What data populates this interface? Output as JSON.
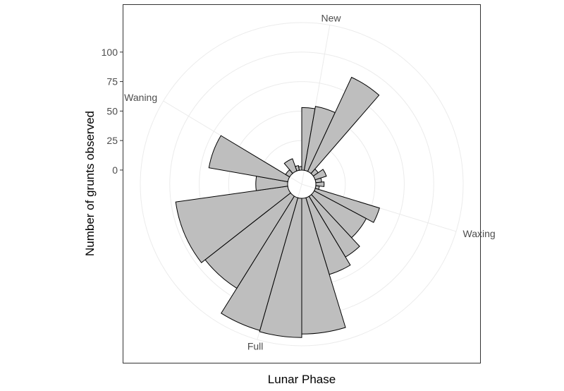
{
  "chart_data": {
    "type": "polar-bar",
    "xlabel": "Lunar Phase",
    "ylabel": "Number of grunts observed",
    "radial_ticks": [
      0,
      25,
      50,
      75,
      100
    ],
    "rlim": [
      -12,
      125
    ],
    "angular_labels": [
      {
        "text": "New",
        "angle_deg": 10
      },
      {
        "text": "Waxing",
        "angle_deg": 107
      },
      {
        "text": "Full",
        "angle_deg": 196
      },
      {
        "text": "Waning",
        "angle_deg": 301
      }
    ],
    "bins": [
      {
        "start_deg": 0,
        "end_deg": 10,
        "value": 53
      },
      {
        "start_deg": 10,
        "end_deg": 25,
        "value": 55
      },
      {
        "start_deg": 25,
        "end_deg": 41,
        "value": 88
      },
      {
        "start_deg": 41,
        "end_deg": 55,
        "value": 5
      },
      {
        "start_deg": 55,
        "end_deg": 72,
        "value": 10
      },
      {
        "start_deg": 72,
        "end_deg": 84,
        "value": 5
      },
      {
        "start_deg": 84,
        "end_deg": 96,
        "value": 7
      },
      {
        "start_deg": 96,
        "end_deg": 107,
        "value": 3
      },
      {
        "start_deg": 107,
        "end_deg": 118,
        "value": 57
      },
      {
        "start_deg": 118,
        "end_deg": 137,
        "value": 50
      },
      {
        "start_deg": 137,
        "end_deg": 149,
        "value": 60
      },
      {
        "start_deg": 149,
        "end_deg": 163,
        "value": 68
      },
      {
        "start_deg": 163,
        "end_deg": 180,
        "value": 115
      },
      {
        "start_deg": 180,
        "end_deg": 196,
        "value": 118
      },
      {
        "start_deg": 196,
        "end_deg": 212,
        "value": 117
      },
      {
        "start_deg": 212,
        "end_deg": 232,
        "value": 92
      },
      {
        "start_deg": 232,
        "end_deg": 262,
        "value": 96
      },
      {
        "start_deg": 262,
        "end_deg": 280,
        "value": 27
      },
      {
        "start_deg": 280,
        "end_deg": 301,
        "value": 68
      },
      {
        "start_deg": 301,
        "end_deg": 320,
        "value": 4
      },
      {
        "start_deg": 320,
        "end_deg": 340,
        "value": 11
      },
      {
        "start_deg": 340,
        "end_deg": 350,
        "value": 4
      },
      {
        "start_deg": 350,
        "end_deg": 360,
        "value": 3
      }
    ],
    "bar_fill": "#bebebe",
    "bar_stroke": "#000000",
    "grid_color": "#ebebeb",
    "panel_border": "#333333",
    "grid": true
  }
}
